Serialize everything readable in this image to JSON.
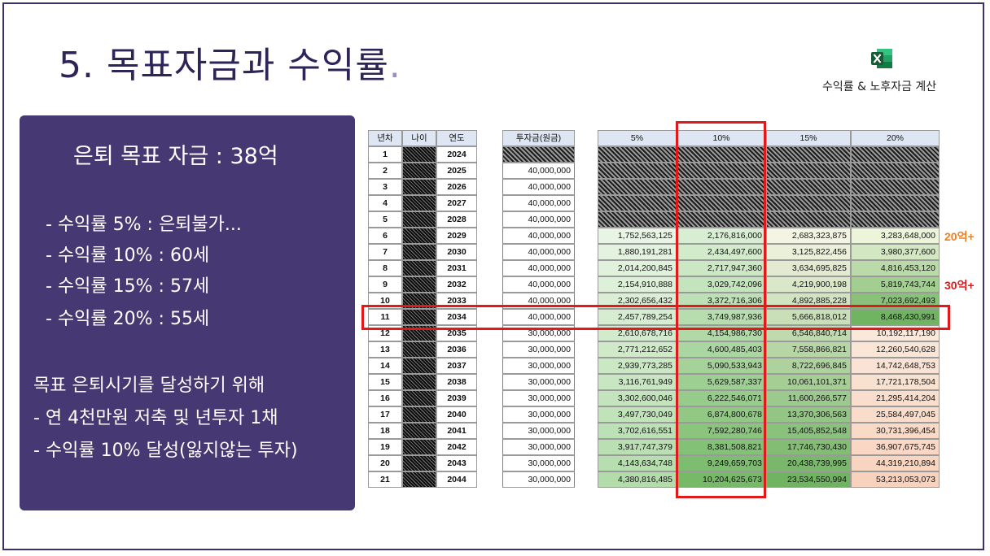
{
  "slide": {
    "title": "5. 목표자금과 수익률",
    "title_dot": ".",
    "excel_label": "수익률 & 노후자금 계산",
    "icon": "excel-icon"
  },
  "panel": {
    "heading": "은퇴 목표 자금 : 38억",
    "rate_lines": [
      "- 수익률 5% : 은퇴불가...",
      "- 수익률 10% : 60세",
      "- 수익률 15% : 57세",
      "- 수익률 20% : 55세"
    ],
    "goal_lines": [
      "목표 은퇴시기를 달성하기 위해",
      "- 연 4천만원 저축 및 년투자 1채",
      "- 수익률 10% 달성(잃지않는 투자)"
    ]
  },
  "table": {
    "headers": [
      "년차",
      "나이",
      "연도",
      "투자금(원금)",
      "5%",
      "10%",
      "15%",
      "20%"
    ],
    "rows": [
      {
        "n": "1",
        "year": "2024",
        "invest": "",
        "r5": "",
        "r10": "",
        "r15": "",
        "r20": ""
      },
      {
        "n": "2",
        "year": "2025",
        "invest": "40,000,000",
        "r5": "",
        "r10": "",
        "r15": "",
        "r20": ""
      },
      {
        "n": "3",
        "year": "2026",
        "invest": "40,000,000",
        "r5": "",
        "r10": "",
        "r15": "",
        "r20": ""
      },
      {
        "n": "4",
        "year": "2027",
        "invest": "40,000,000",
        "r5": "",
        "r10": "",
        "r15": "",
        "r20": ""
      },
      {
        "n": "5",
        "year": "2028",
        "invest": "40,000,000",
        "r5": "",
        "r10": "",
        "r15": "",
        "r20": ""
      },
      {
        "n": "6",
        "year": "2029",
        "invest": "40,000,000",
        "r5": "1,752,563,125",
        "r10": "2,176,816,000",
        "r15": "2,683,323,875",
        "r20": "3,283,648,000"
      },
      {
        "n": "7",
        "year": "2030",
        "invest": "40,000,000",
        "r5": "1,880,191,281",
        "r10": "2,434,497,600",
        "r15": "3,125,822,456",
        "r20": "3,980,377,600"
      },
      {
        "n": "8",
        "year": "2031",
        "invest": "40,000,000",
        "r5": "2,014,200,845",
        "r10": "2,717,947,360",
        "r15": "3,634,695,825",
        "r20": "4,816,453,120"
      },
      {
        "n": "9",
        "year": "2032",
        "invest": "40,000,000",
        "r5": "2,154,910,888",
        "r10": "3,029,742,096",
        "r15": "4,219,900,198",
        "r20": "5,819,743,744"
      },
      {
        "n": "10",
        "year": "2033",
        "invest": "40,000,000",
        "r5": "2,302,656,432",
        "r10": "3,372,716,306",
        "r15": "4,892,885,228",
        "r20": "7,023,692,493"
      },
      {
        "n": "11",
        "year": "2034",
        "invest": "40,000,000",
        "r5": "2,457,789,254",
        "r10": "3,749,987,936",
        "r15": "5,666,818,012",
        "r20": "8,468,430,991"
      },
      {
        "n": "12",
        "year": "2035",
        "invest": "30,000,000",
        "r5": "2,610,678,716",
        "r10": "4,154,986,730",
        "r15": "6,546,840,714",
        "r20": "10,192,117,190"
      },
      {
        "n": "13",
        "year": "2036",
        "invest": "30,000,000",
        "r5": "2,771,212,652",
        "r10": "4,600,485,403",
        "r15": "7,558,866,821",
        "r20": "12,260,540,628"
      },
      {
        "n": "14",
        "year": "2037",
        "invest": "30,000,000",
        "r5": "2,939,773,285",
        "r10": "5,090,533,943",
        "r15": "8,722,696,845",
        "r20": "14,742,648,753"
      },
      {
        "n": "15",
        "year": "2038",
        "invest": "30,000,000",
        "r5": "3,116,761,949",
        "r10": "5,629,587,337",
        "r15": "10,061,101,371",
        "r20": "17,721,178,504"
      },
      {
        "n": "16",
        "year": "2039",
        "invest": "30,000,000",
        "r5": "3,302,600,046",
        "r10": "6,222,546,071",
        "r15": "11,600,266,577",
        "r20": "21,295,414,204"
      },
      {
        "n": "17",
        "year": "2040",
        "invest": "30,000,000",
        "r5": "3,497,730,049",
        "r10": "6,874,800,678",
        "r15": "13,370,306,563",
        "r20": "25,584,497,045"
      },
      {
        "n": "18",
        "year": "2041",
        "invest": "30,000,000",
        "r5": "3,702,616,551",
        "r10": "7,592,280,746",
        "r15": "15,405,852,548",
        "r20": "30,731,396,454"
      },
      {
        "n": "19",
        "year": "2042",
        "invest": "30,000,000",
        "r5": "3,917,747,379",
        "r10": "8,381,508,821",
        "r15": "17,746,730,430",
        "r20": "36,907,675,745"
      },
      {
        "n": "20",
        "year": "2043",
        "invest": "30,000,000",
        "r5": "4,143,634,748",
        "r10": "9,249,659,703",
        "r15": "20,438,739,995",
        "r20": "44,319,210,894"
      },
      {
        "n": "21",
        "year": "2044",
        "invest": "30,000,000",
        "r5": "4,380,816,485",
        "r10": "10,204,625,673",
        "r15": "23,534,550,994",
        "r20": "53,213,053,073"
      }
    ]
  },
  "annotations": [
    {
      "text": "20억+",
      "color": "#f07f1e",
      "row": 6
    },
    {
      "text": "30억+",
      "color": "#e01a1a",
      "row": 9
    }
  ],
  "colors": {
    "panel_bg": "#463873",
    "title": "#2f2457",
    "highlight": "#e01a1a",
    "header_bg": "#dde6f2"
  }
}
